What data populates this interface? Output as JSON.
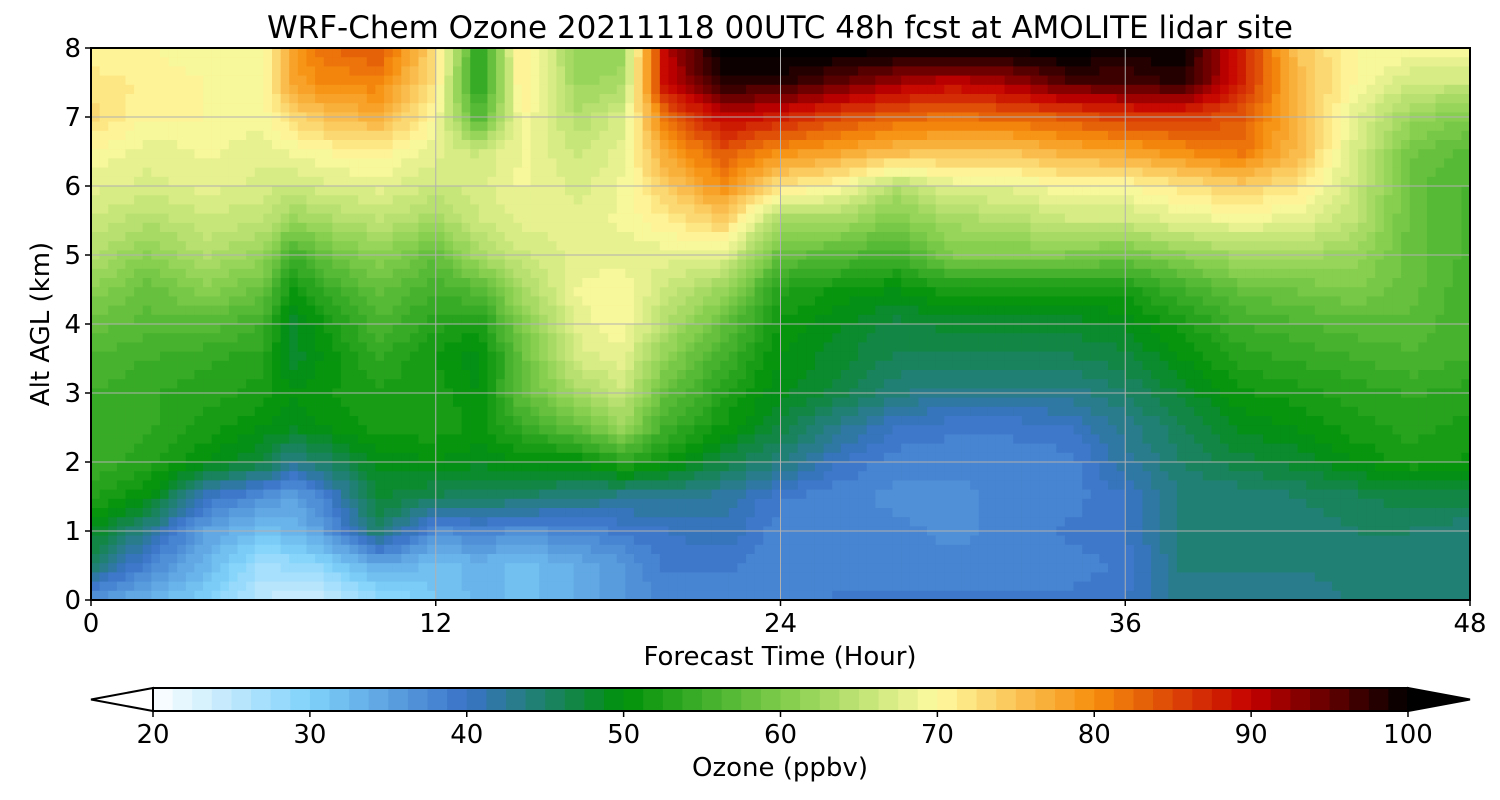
{
  "chart_data": {
    "type": "heatmap",
    "title": "WRF-Chem Ozone  20211118 00UTC 48h fcst at AMOLITE lidar site",
    "xlabel": "Forecast Time (Hour)",
    "ylabel": "Alt AGL (km)",
    "xlim": [
      0,
      48
    ],
    "ylim": [
      0,
      8
    ],
    "x_ticks": [
      "0",
      "12",
      "24",
      "36",
      "48"
    ],
    "y_ticks": [
      "0",
      "1",
      "2",
      "3",
      "4",
      "5",
      "6",
      "7",
      "8"
    ],
    "grid": true,
    "x": [
      0,
      2,
      4,
      6,
      7,
      8,
      10,
      12,
      13.5,
      15,
      17,
      18.5,
      20,
      22,
      24,
      26,
      28,
      30,
      32,
      34,
      36,
      38,
      40,
      42,
      44,
      46,
      48
    ],
    "y": [
      0,
      0.5,
      1,
      1.5,
      2,
      2.5,
      3,
      3.5,
      4,
      4.5,
      5,
      5.5,
      6,
      6.5,
      7,
      7.5,
      8
    ],
    "z": [
      [
        36,
        33,
        30,
        25,
        24,
        24,
        28,
        31,
        33,
        32,
        34,
        36,
        38,
        38,
        38,
        39,
        39,
        39,
        39,
        39,
        40,
        43,
        43,
        43,
        44,
        44,
        44
      ],
      [
        45,
        38,
        33,
        27,
        28,
        29,
        34,
        32,
        33,
        32,
        34,
        36,
        39,
        39,
        38,
        38,
        38,
        38,
        38,
        38,
        39,
        44,
        44,
        44,
        44,
        44,
        44
      ],
      [
        49,
        43,
        35,
        32,
        33,
        35,
        45,
        37,
        38,
        37,
        38,
        39,
        40,
        41,
        38,
        38,
        38,
        37,
        38,
        39,
        40,
        44,
        44,
        44,
        45,
        45,
        44
      ],
      [
        53,
        50,
        40,
        37,
        35,
        38,
        48,
        46,
        46,
        45,
        44,
        43,
        43,
        42,
        39,
        38,
        37,
        37,
        38,
        38,
        40,
        44,
        44,
        45,
        46,
        47,
        47
      ],
      [
        55,
        53,
        50,
        47,
        43,
        45,
        49,
        50,
        49,
        50,
        50,
        53,
        51,
        47,
        44,
        40,
        38,
        38,
        38,
        38,
        42,
        45,
        47,
        48,
        50,
        52,
        51
      ],
      [
        55,
        54,
        52,
        50,
        49,
        50,
        52,
        52,
        51,
        54,
        58,
        62,
        55,
        51,
        47,
        43,
        40,
        39,
        39,
        40,
        43,
        46,
        49,
        50,
        52,
        53,
        52
      ],
      [
        55,
        54,
        53,
        52,
        50,
        51,
        52,
        52,
        50,
        58,
        63,
        66,
        58,
        53,
        49,
        47,
        44,
        43,
        43,
        43,
        45,
        48,
        51,
        52,
        53,
        54,
        53
      ],
      [
        56,
        55,
        54,
        53,
        48,
        50,
        54,
        51,
        49,
        58,
        67,
        68,
        61,
        55,
        50,
        48,
        46,
        46,
        46,
        46,
        47,
        50,
        53,
        54,
        55,
        56,
        55
      ],
      [
        58,
        57,
        57,
        55,
        48,
        51,
        56,
        53,
        52,
        60,
        68,
        70,
        64,
        58,
        51,
        49,
        47,
        48,
        48,
        48,
        49,
        52,
        55,
        56,
        57,
        57,
        55
      ],
      [
        61,
        58,
        61,
        58,
        51,
        54,
        58,
        55,
        57,
        63,
        69,
        70,
        66,
        62,
        53,
        51,
        50,
        52,
        52,
        52,
        52,
        55,
        58,
        59,
        60,
        58,
        55
      ],
      [
        64,
        61,
        64,
        62,
        55,
        58,
        61,
        58,
        63,
        66,
        68,
        68,
        68,
        68,
        58,
        57,
        55,
        60,
        60,
        60,
        59,
        61,
        63,
        63,
        62,
        58,
        56
      ],
      [
        66,
        64,
        66,
        65,
        62,
        63,
        65,
        63,
        66,
        68,
        68,
        69,
        71,
        74,
        63,
        63,
        60,
        63,
        64,
        66,
        66,
        68,
        69,
        68,
        65,
        58,
        56
      ],
      [
        68,
        67,
        68,
        67,
        66,
        67,
        68,
        66,
        67,
        69,
        67,
        69,
        74,
        80,
        72,
        70,
        64,
        68,
        68,
        70,
        70,
        72,
        74,
        72,
        66,
        58,
        56
      ],
      [
        70,
        68,
        69,
        68,
        69,
        70,
        71,
        68,
        66,
        69,
        66,
        68,
        78,
        84,
        80,
        78,
        76,
        75,
        75,
        77,
        78,
        80,
        82,
        76,
        67,
        59,
        57
      ],
      [
        73,
        70,
        70,
        69,
        73,
        75,
        77,
        70,
        56,
        70,
        64,
        67,
        82,
        90,
        88,
        85,
        83,
        82,
        83,
        84,
        86,
        86,
        84,
        76,
        68,
        62,
        60
      ],
      [
        72,
        71,
        70,
        70,
        78,
        80,
        81,
        72,
        52,
        72,
        62,
        63,
        90,
        98,
        98,
        95,
        92,
        90,
        92,
        96,
        96,
        98,
        88,
        76,
        70,
        66,
        66
      ],
      [
        70,
        70,
        69,
        70,
        78,
        82,
        84,
        73,
        53,
        72,
        61,
        62,
        90,
        101,
        101,
        101,
        101,
        101,
        101,
        101,
        100,
        100,
        88,
        75,
        70,
        70,
        70
      ]
    ],
    "colorbar": {
      "label": "Ozone  (ppbv)",
      "min": 20,
      "max": 100,
      "ticks": [
        "20",
        "30",
        "40",
        "50",
        "60",
        "70",
        "80",
        "90",
        "100"
      ],
      "extend": "both",
      "colors": [
        "#ffffff",
        "#7fd2fa",
        "#3a72c7",
        "#00910a",
        "#7fcc4a",
        "#fffaa0",
        "#f68e0d",
        "#c40000",
        "#000000"
      ]
    }
  }
}
